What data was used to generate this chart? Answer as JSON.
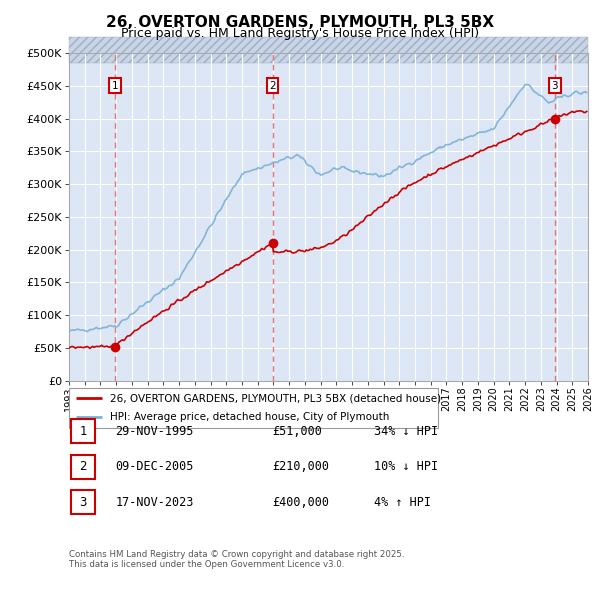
{
  "title": "26, OVERTON GARDENS, PLYMOUTH, PL3 5BX",
  "subtitle": "Price paid vs. HM Land Registry's House Price Index (HPI)",
  "legend_label_red": "26, OVERTON GARDENS, PLYMOUTH, PL3 5BX (detached house)",
  "legend_label_blue": "HPI: Average price, detached house, City of Plymouth",
  "footer": "Contains HM Land Registry data © Crown copyright and database right 2025.\nThis data is licensed under the Open Government Licence v3.0.",
  "sale_points": [
    {
      "num": 1,
      "date": "29-NOV-1995",
      "price": 51000,
      "year": 1995.91,
      "hpi_text": "34% ↓ HPI"
    },
    {
      "num": 2,
      "date": "09-DEC-2005",
      "price": 210000,
      "year": 2005.94,
      "hpi_text": "10% ↓ HPI"
    },
    {
      "num": 3,
      "date": "17-NOV-2023",
      "price": 400000,
      "year": 2023.88,
      "hpi_text": "4% ↑ HPI"
    }
  ],
  "table_rows": [
    {
      "num": 1,
      "date": "29-NOV-1995",
      "price": "£51,000",
      "hpi": "34% ↓ HPI"
    },
    {
      "num": 2,
      "date": "09-DEC-2005",
      "price": "£210,000",
      "hpi": "10% ↓ HPI"
    },
    {
      "num": 3,
      "date": "17-NOV-2023",
      "price": "£400,000",
      "hpi": "4% ↑ HPI"
    }
  ],
  "ylim": [
    0,
    500000
  ],
  "xlim_start": 1993,
  "xlim_end": 2026,
  "plot_bg": "#dce6f5",
  "hatch_bg": "#c8d4e8",
  "red_color": "#cc0000",
  "blue_color": "#7ab0d4",
  "vline_color": "#e06060",
  "grid_color": "#ffffff",
  "title_fontsize": 11,
  "subtitle_fontsize": 9
}
